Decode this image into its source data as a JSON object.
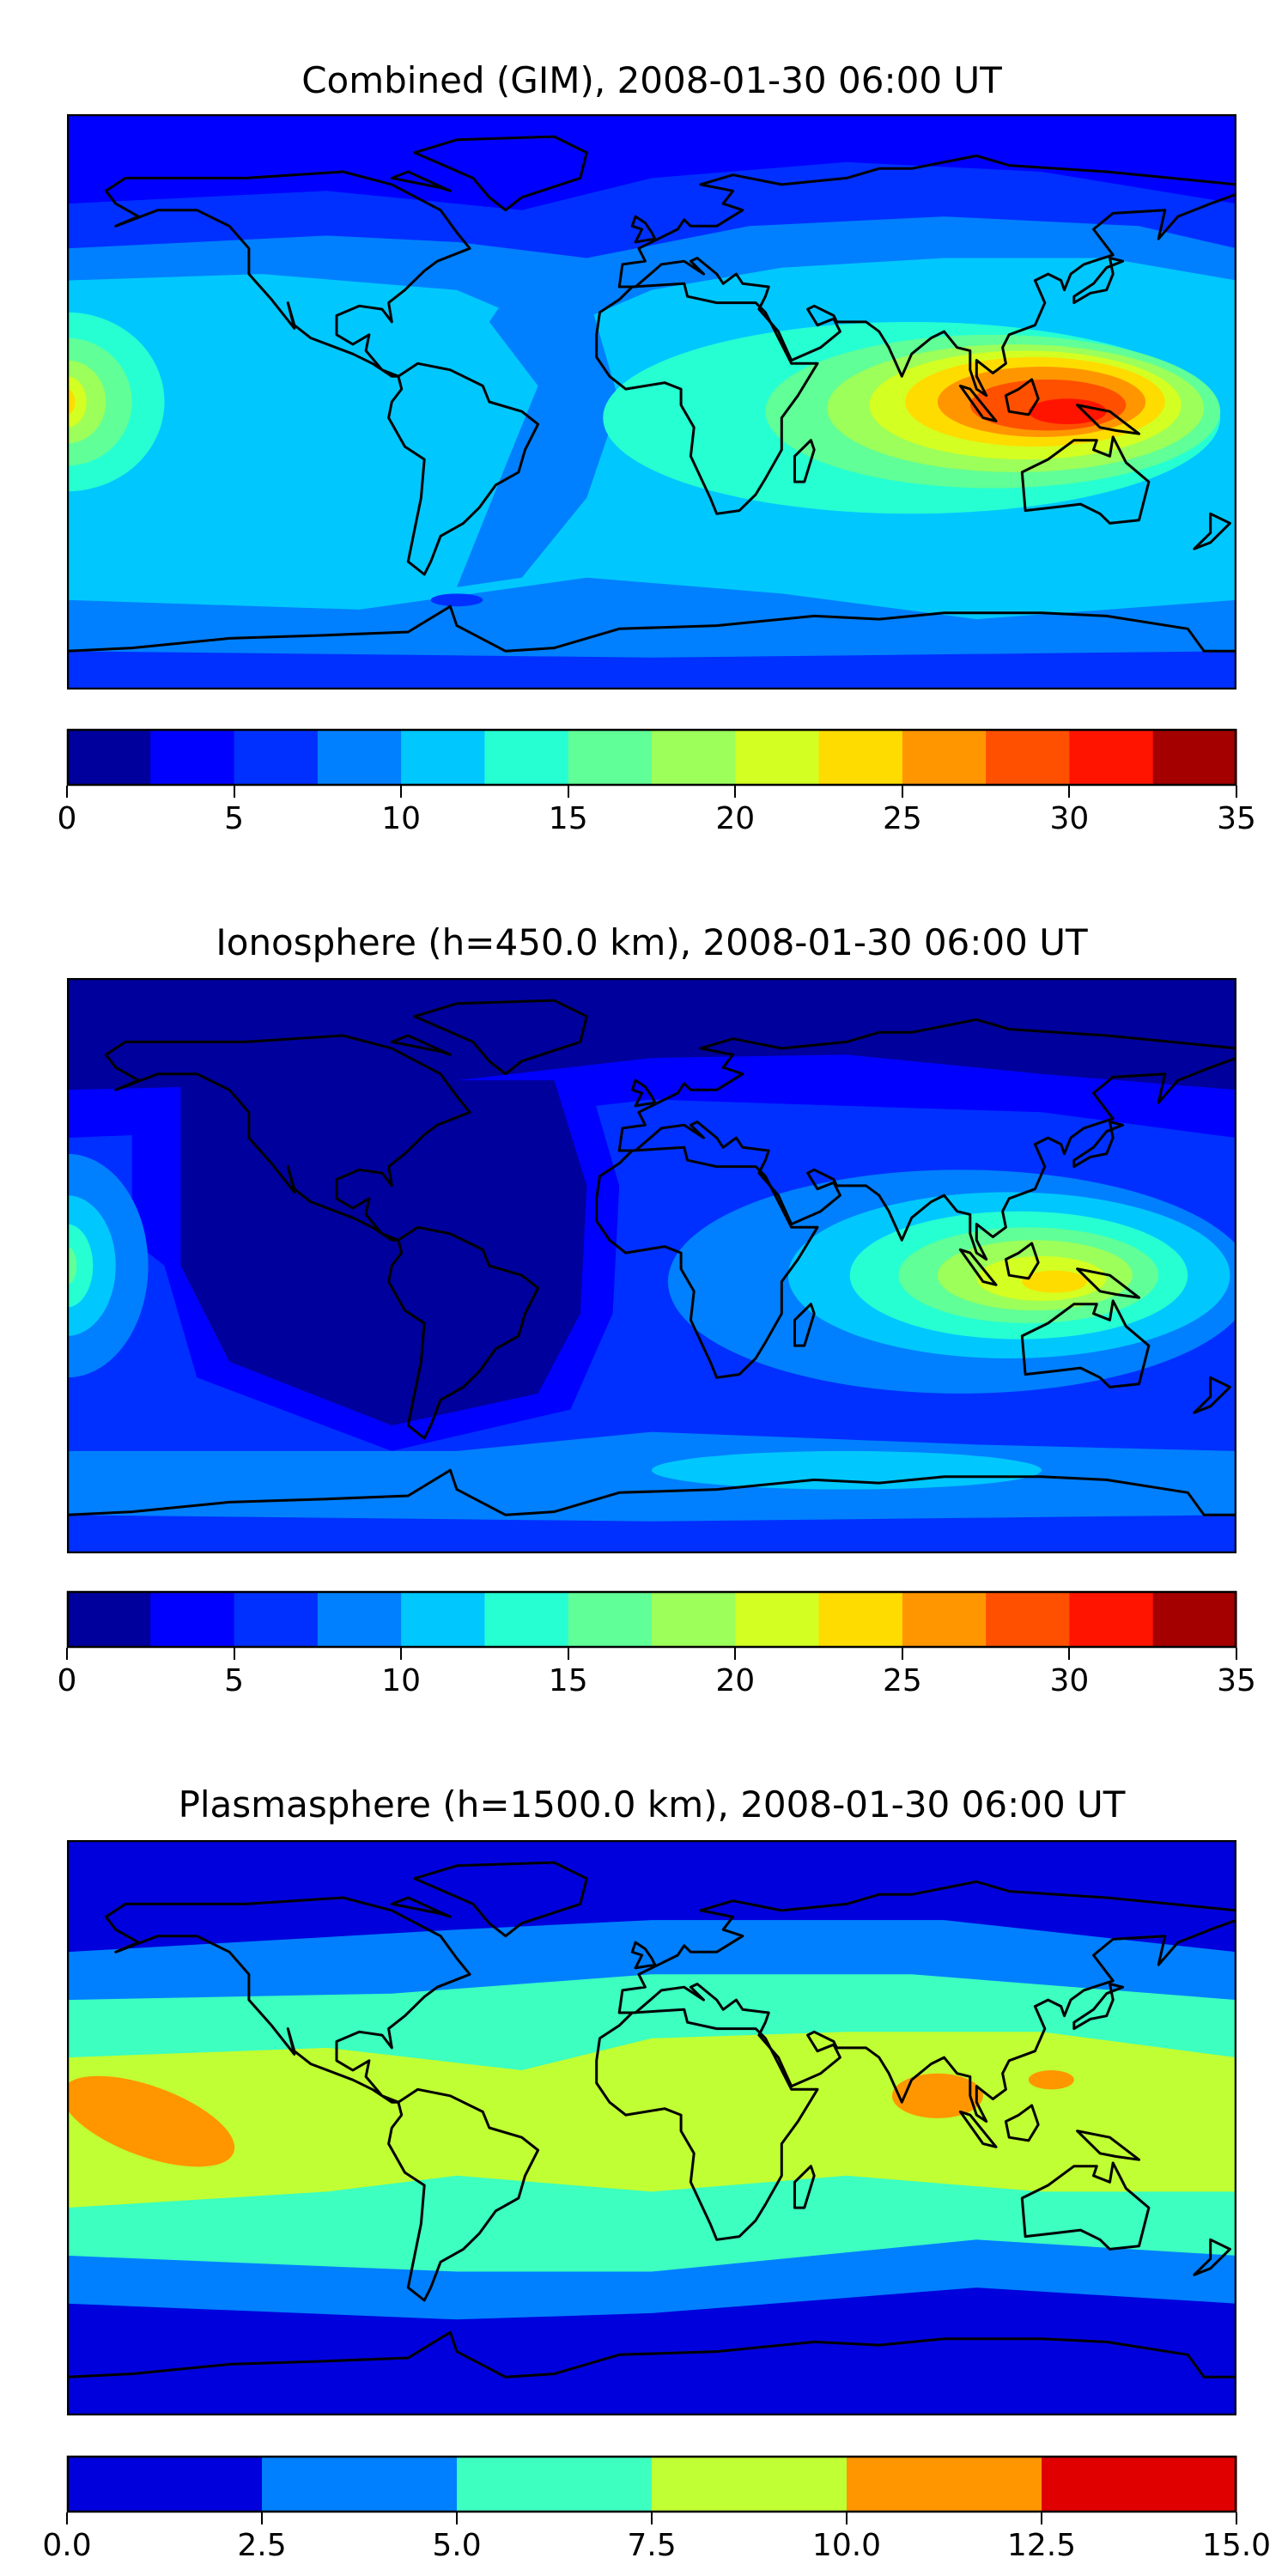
{
  "panels": [
    {
      "title": "Combined (GIM), 2008-01-30 06:00 UT",
      "colorbar": {
        "min": 0,
        "max": 35,
        "step": 2.5,
        "ticks": [
          "0",
          "5",
          "10",
          "15",
          "20",
          "25",
          "30",
          "35"
        ],
        "colors": [
          "#00009c",
          "#0000ff",
          "#0030ff",
          "#0080ff",
          "#00c8ff",
          "#26ffd2",
          "#60ff97",
          "#9cff5a",
          "#d4ff22",
          "#ffdc00",
          "#ff9600",
          "#ff5000",
          "#ff1400",
          "#a50000"
        ]
      }
    },
    {
      "title": "Ionosphere  (h=450.0 km), 2008-01-30 06:00 UT",
      "colorbar": {
        "min": 0,
        "max": 35,
        "step": 2.5,
        "ticks": [
          "0",
          "5",
          "10",
          "15",
          "20",
          "25",
          "30",
          "35"
        ],
        "colors": [
          "#00009c",
          "#0000ff",
          "#0030ff",
          "#0080ff",
          "#00c8ff",
          "#26ffd2",
          "#60ff97",
          "#9cff5a",
          "#d4ff22",
          "#ffdc00",
          "#ff9600",
          "#ff5000",
          "#ff1400",
          "#a50000"
        ]
      }
    },
    {
      "title": "Plasmasphere (h=1500.0 km), 2008-01-30 06:00 UT",
      "colorbar": {
        "min": 0,
        "max": 15,
        "step": 2.5,
        "ticks": [
          "0.0",
          "2.5",
          "5.0",
          "7.5",
          "10.0",
          "12.5",
          "15.0"
        ],
        "colors": [
          "#0000dc",
          "#0080ff",
          "#3cffc0",
          "#c0ff33",
          "#ff9600",
          "#e00000"
        ]
      }
    }
  ],
  "chart_data": [
    {
      "type": "heatmap",
      "title": "Combined (GIM), 2008-01-30 06:00 UT",
      "projection": "equirectangular",
      "lon_range": [
        -180,
        180
      ],
      "lat_range": [
        -90,
        90
      ],
      "colorbar_range": [
        0,
        35
      ],
      "levels_step": 2.5,
      "peak_region": "Southeast Asia / Indonesia",
      "peak_value_approx": 30
    },
    {
      "type": "heatmap",
      "title": "Ionosphere  (h=450.0 km), 2008-01-30 06:00 UT",
      "projection": "equirectangular",
      "lon_range": [
        -180,
        180
      ],
      "lat_range": [
        -90,
        90
      ],
      "colorbar_range": [
        0,
        35
      ],
      "levels_step": 2.5,
      "peak_region": "Indonesia",
      "peak_value_approx": 22.5
    },
    {
      "type": "heatmap",
      "title": "Plasmasphere (h=1500.0 km), 2008-01-30 06:00 UT",
      "projection": "equirectangular",
      "lon_range": [
        -180,
        180
      ],
      "lat_range": [
        -90,
        90
      ],
      "colorbar_range": [
        0,
        15
      ],
      "levels_step": 2.5,
      "peak_region": "Central Pacific / Bay of Bengal",
      "peak_value_approx": 10
    }
  ]
}
